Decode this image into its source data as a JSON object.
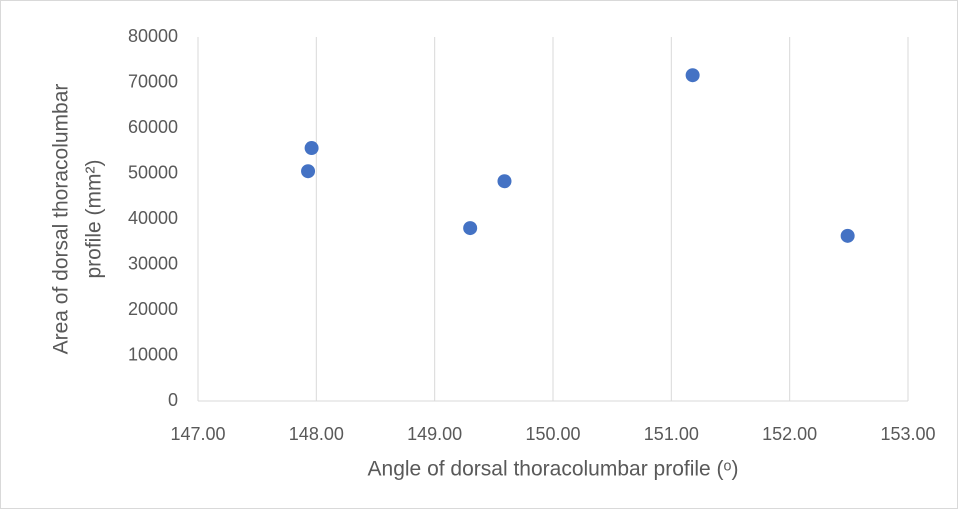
{
  "chart_data": {
    "type": "scatter",
    "xlabel": "Angle of dorsal thoracolumbar profile (ᵒ)",
    "ylabel": [
      "Area of dorsal thoracolumbar",
      "profile (mm²)"
    ],
    "series": [
      {
        "color": "#4472c4",
        "x": [
          147.93,
          147.96,
          149.3,
          149.59,
          151.18,
          152.49
        ],
        "values": [
          50500,
          55600,
          38000,
          48300,
          71600,
          36300
        ]
      }
    ],
    "xlim": [
      147,
      153
    ],
    "xticks": [
      {
        "value": 147,
        "label": "147.00"
      },
      {
        "value": 148,
        "label": "148.00"
      },
      {
        "value": 149,
        "label": "149.00"
      },
      {
        "value": 150,
        "label": "150.00"
      },
      {
        "value": 151,
        "label": "151.00"
      },
      {
        "value": 152,
        "label": "152.00"
      },
      {
        "value": 153,
        "label": "153.00"
      }
    ],
    "ylim": [
      0,
      80000
    ],
    "yticks": [
      0,
      10000,
      20000,
      30000,
      40000,
      50000,
      60000,
      70000,
      80000
    ],
    "grid": true
  }
}
